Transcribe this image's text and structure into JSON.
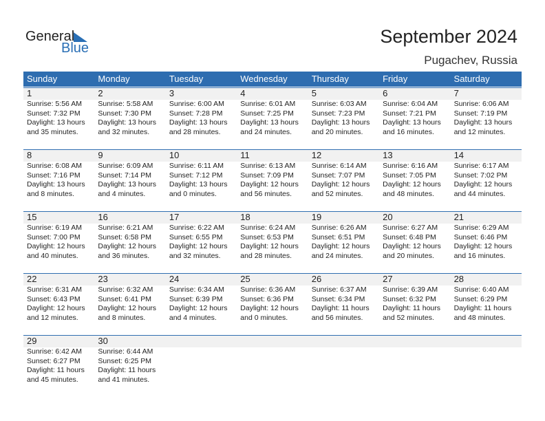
{
  "logo": {
    "line1": "General",
    "line2": "Blue"
  },
  "title": "September 2024",
  "location": "Pugachev, Russia",
  "weekdays": [
    "Sunday",
    "Monday",
    "Tuesday",
    "Wednesday",
    "Thursday",
    "Friday",
    "Saturday"
  ],
  "weeks": [
    [
      {
        "day": "1",
        "sunrise": "Sunrise: 5:56 AM",
        "sunset": "Sunset: 7:32 PM",
        "daylight1": "Daylight: 13 hours",
        "daylight2": "and 35 minutes."
      },
      {
        "day": "2",
        "sunrise": "Sunrise: 5:58 AM",
        "sunset": "Sunset: 7:30 PM",
        "daylight1": "Daylight: 13 hours",
        "daylight2": "and 32 minutes."
      },
      {
        "day": "3",
        "sunrise": "Sunrise: 6:00 AM",
        "sunset": "Sunset: 7:28 PM",
        "daylight1": "Daylight: 13 hours",
        "daylight2": "and 28 minutes."
      },
      {
        "day": "4",
        "sunrise": "Sunrise: 6:01 AM",
        "sunset": "Sunset: 7:25 PM",
        "daylight1": "Daylight: 13 hours",
        "daylight2": "and 24 minutes."
      },
      {
        "day": "5",
        "sunrise": "Sunrise: 6:03 AM",
        "sunset": "Sunset: 7:23 PM",
        "daylight1": "Daylight: 13 hours",
        "daylight2": "and 20 minutes."
      },
      {
        "day": "6",
        "sunrise": "Sunrise: 6:04 AM",
        "sunset": "Sunset: 7:21 PM",
        "daylight1": "Daylight: 13 hours",
        "daylight2": "and 16 minutes."
      },
      {
        "day": "7",
        "sunrise": "Sunrise: 6:06 AM",
        "sunset": "Sunset: 7:19 PM",
        "daylight1": "Daylight: 13 hours",
        "daylight2": "and 12 minutes."
      }
    ],
    [
      {
        "day": "8",
        "sunrise": "Sunrise: 6:08 AM",
        "sunset": "Sunset: 7:16 PM",
        "daylight1": "Daylight: 13 hours",
        "daylight2": "and 8 minutes."
      },
      {
        "day": "9",
        "sunrise": "Sunrise: 6:09 AM",
        "sunset": "Sunset: 7:14 PM",
        "daylight1": "Daylight: 13 hours",
        "daylight2": "and 4 minutes."
      },
      {
        "day": "10",
        "sunrise": "Sunrise: 6:11 AM",
        "sunset": "Sunset: 7:12 PM",
        "daylight1": "Daylight: 13 hours",
        "daylight2": "and 0 minutes."
      },
      {
        "day": "11",
        "sunrise": "Sunrise: 6:13 AM",
        "sunset": "Sunset: 7:09 PM",
        "daylight1": "Daylight: 12 hours",
        "daylight2": "and 56 minutes."
      },
      {
        "day": "12",
        "sunrise": "Sunrise: 6:14 AM",
        "sunset": "Sunset: 7:07 PM",
        "daylight1": "Daylight: 12 hours",
        "daylight2": "and 52 minutes."
      },
      {
        "day": "13",
        "sunrise": "Sunrise: 6:16 AM",
        "sunset": "Sunset: 7:05 PM",
        "daylight1": "Daylight: 12 hours",
        "daylight2": "and 48 minutes."
      },
      {
        "day": "14",
        "sunrise": "Sunrise: 6:17 AM",
        "sunset": "Sunset: 7:02 PM",
        "daylight1": "Daylight: 12 hours",
        "daylight2": "and 44 minutes."
      }
    ],
    [
      {
        "day": "15",
        "sunrise": "Sunrise: 6:19 AM",
        "sunset": "Sunset: 7:00 PM",
        "daylight1": "Daylight: 12 hours",
        "daylight2": "and 40 minutes."
      },
      {
        "day": "16",
        "sunrise": "Sunrise: 6:21 AM",
        "sunset": "Sunset: 6:58 PM",
        "daylight1": "Daylight: 12 hours",
        "daylight2": "and 36 minutes."
      },
      {
        "day": "17",
        "sunrise": "Sunrise: 6:22 AM",
        "sunset": "Sunset: 6:55 PM",
        "daylight1": "Daylight: 12 hours",
        "daylight2": "and 32 minutes."
      },
      {
        "day": "18",
        "sunrise": "Sunrise: 6:24 AM",
        "sunset": "Sunset: 6:53 PM",
        "daylight1": "Daylight: 12 hours",
        "daylight2": "and 28 minutes."
      },
      {
        "day": "19",
        "sunrise": "Sunrise: 6:26 AM",
        "sunset": "Sunset: 6:51 PM",
        "daylight1": "Daylight: 12 hours",
        "daylight2": "and 24 minutes."
      },
      {
        "day": "20",
        "sunrise": "Sunrise: 6:27 AM",
        "sunset": "Sunset: 6:48 PM",
        "daylight1": "Daylight: 12 hours",
        "daylight2": "and 20 minutes."
      },
      {
        "day": "21",
        "sunrise": "Sunrise: 6:29 AM",
        "sunset": "Sunset: 6:46 PM",
        "daylight1": "Daylight: 12 hours",
        "daylight2": "and 16 minutes."
      }
    ],
    [
      {
        "day": "22",
        "sunrise": "Sunrise: 6:31 AM",
        "sunset": "Sunset: 6:43 PM",
        "daylight1": "Daylight: 12 hours",
        "daylight2": "and 12 minutes."
      },
      {
        "day": "23",
        "sunrise": "Sunrise: 6:32 AM",
        "sunset": "Sunset: 6:41 PM",
        "daylight1": "Daylight: 12 hours",
        "daylight2": "and 8 minutes."
      },
      {
        "day": "24",
        "sunrise": "Sunrise: 6:34 AM",
        "sunset": "Sunset: 6:39 PM",
        "daylight1": "Daylight: 12 hours",
        "daylight2": "and 4 minutes."
      },
      {
        "day": "25",
        "sunrise": "Sunrise: 6:36 AM",
        "sunset": "Sunset: 6:36 PM",
        "daylight1": "Daylight: 12 hours",
        "daylight2": "and 0 minutes."
      },
      {
        "day": "26",
        "sunrise": "Sunrise: 6:37 AM",
        "sunset": "Sunset: 6:34 PM",
        "daylight1": "Daylight: 11 hours",
        "daylight2": "and 56 minutes."
      },
      {
        "day": "27",
        "sunrise": "Sunrise: 6:39 AM",
        "sunset": "Sunset: 6:32 PM",
        "daylight1": "Daylight: 11 hours",
        "daylight2": "and 52 minutes."
      },
      {
        "day": "28",
        "sunrise": "Sunrise: 6:40 AM",
        "sunset": "Sunset: 6:29 PM",
        "daylight1": "Daylight: 11 hours",
        "daylight2": "and 48 minutes."
      }
    ],
    [
      {
        "day": "29",
        "sunrise": "Sunrise: 6:42 AM",
        "sunset": "Sunset: 6:27 PM",
        "daylight1": "Daylight: 11 hours",
        "daylight2": "and 45 minutes."
      },
      {
        "day": "30",
        "sunrise": "Sunrise: 6:44 AM",
        "sunset": "Sunset: 6:25 PM",
        "daylight1": "Daylight: 11 hours",
        "daylight2": "and 41 minutes."
      }
    ]
  ]
}
